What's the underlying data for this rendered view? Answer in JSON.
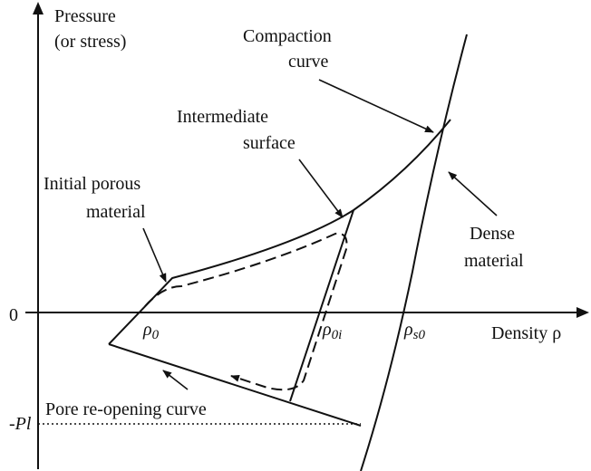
{
  "axes": {
    "y_label": [
      "Pressure",
      "(or stress)"
    ],
    "x_label": "Density ρ",
    "origin": "0",
    "tension_mark": "-Pl"
  },
  "densities": [
    {
      "symbol": "ρ",
      "subscript": "0"
    },
    {
      "symbol": "ρ",
      "subscript": "0i"
    },
    {
      "symbol": "ρ",
      "subscript": "s0"
    }
  ],
  "labels": {
    "compaction": [
      "Compaction",
      "curve"
    ],
    "intermediate": [
      "Intermediate",
      "surface"
    ],
    "initial": [
      "Initial porous",
      "material"
    ],
    "dense": [
      "Dense",
      "material"
    ],
    "pore": "Pore re-opening curve"
  }
}
